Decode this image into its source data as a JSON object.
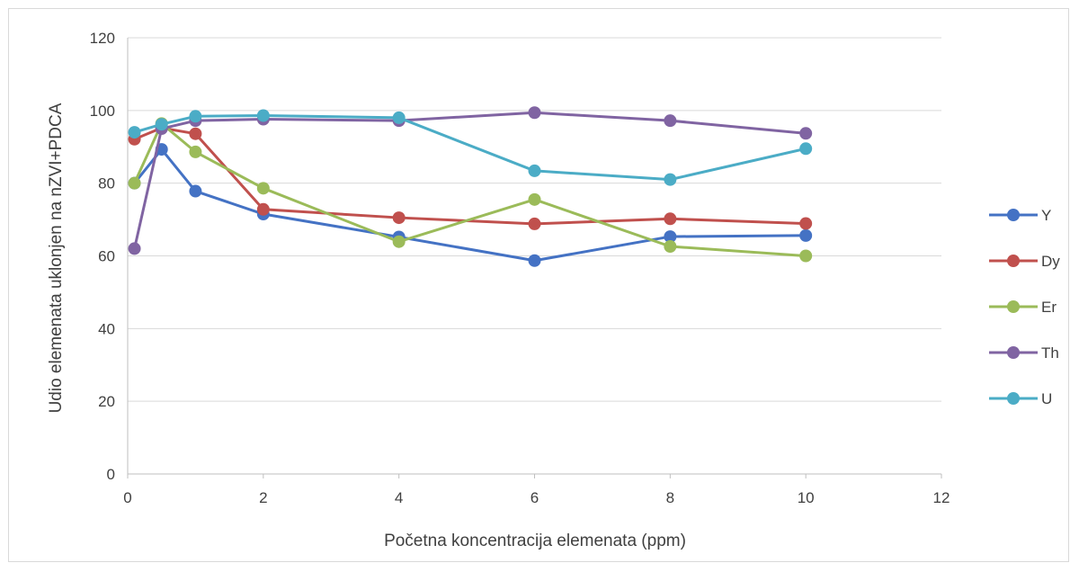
{
  "chart_data": {
    "type": "line",
    "title": "",
    "xlabel": "Početna koncentracija elemenata (ppm)",
    "ylabel": "Udio elemenata uklonjen na nZVI+PDCA",
    "xlim": [
      0,
      12
    ],
    "ylim": [
      0,
      120
    ],
    "xticks": [
      0,
      2,
      4,
      6,
      8,
      10,
      12
    ],
    "yticks": [
      0,
      20,
      40,
      60,
      80,
      100,
      120
    ],
    "grid": "horizontal",
    "legend_position": "right",
    "x": [
      0.1,
      0.5,
      1,
      2,
      4,
      6,
      8,
      10
    ],
    "series": [
      {
        "name": "Y",
        "color": "#4472c4",
        "values": [
          80,
          89.3,
          77.8,
          71.5,
          65.2,
          58.7,
          65.3,
          65.6
        ]
      },
      {
        "name": "Dy",
        "color": "#c0504d",
        "values": [
          92.1,
          95.2,
          93.6,
          72.8,
          70.5,
          68.8,
          70.2,
          68.9
        ]
      },
      {
        "name": "Er",
        "color": "#9bbb59",
        "values": [
          80,
          96.4,
          88.6,
          78.6,
          63.9,
          75.5,
          62.6,
          60
        ]
      },
      {
        "name": "Th",
        "color": "#8064a2",
        "values": [
          62,
          95,
          97.2,
          97.6,
          97.2,
          99.4,
          97.2,
          93.7
        ]
      },
      {
        "name": "U",
        "color": "#4bacc6",
        "values": [
          94,
          96.2,
          98.4,
          98.6,
          98,
          83.4,
          81,
          89.5
        ]
      }
    ]
  }
}
